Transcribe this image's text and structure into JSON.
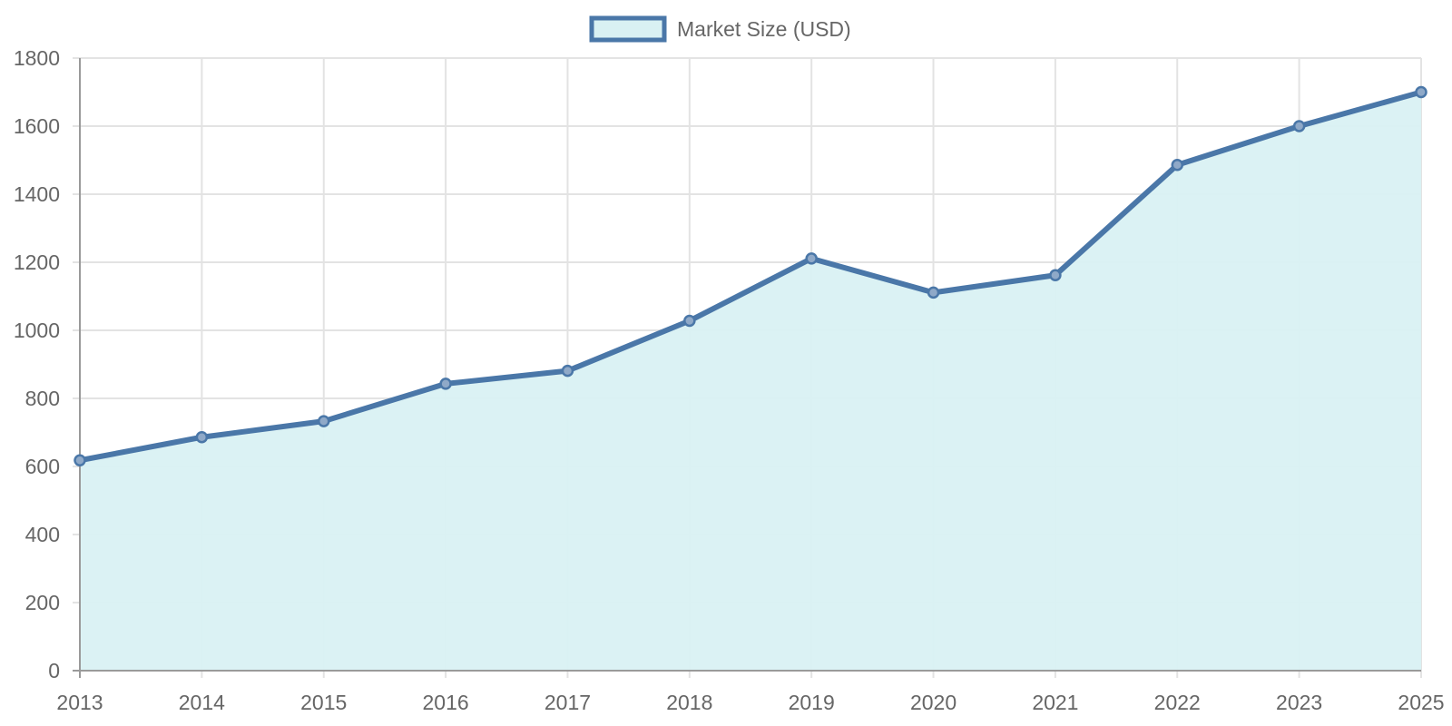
{
  "chart_data": {
    "type": "line",
    "title": "",
    "xlabel": "",
    "ylabel": "",
    "categories": [
      "2013",
      "2014",
      "2015",
      "2016",
      "2017",
      "2018",
      "2019",
      "2020",
      "2021",
      "2022",
      "2023",
      "2025"
    ],
    "series": [
      {
        "name": "Market Size (USD)",
        "values": [
          618,
          686,
          733,
          843,
          881,
          1028,
          1211,
          1111,
          1162,
          1486,
          1600,
          1700
        ],
        "fill": true
      }
    ],
    "ylim": [
      0,
      1800
    ],
    "yticks": [
      0,
      200,
      400,
      600,
      800,
      1000,
      1200,
      1400,
      1600,
      1800
    ],
    "grid": true,
    "legend_position": "top"
  },
  "legend": {
    "label": "Market Size (USD)"
  },
  "colors": {
    "line": "#4a77a8",
    "fill": "#d9f1f3",
    "point_fill": "#8fa9c8",
    "grid": "#e3e3e3",
    "axis": "#9a9a9a",
    "text": "#666666"
  }
}
